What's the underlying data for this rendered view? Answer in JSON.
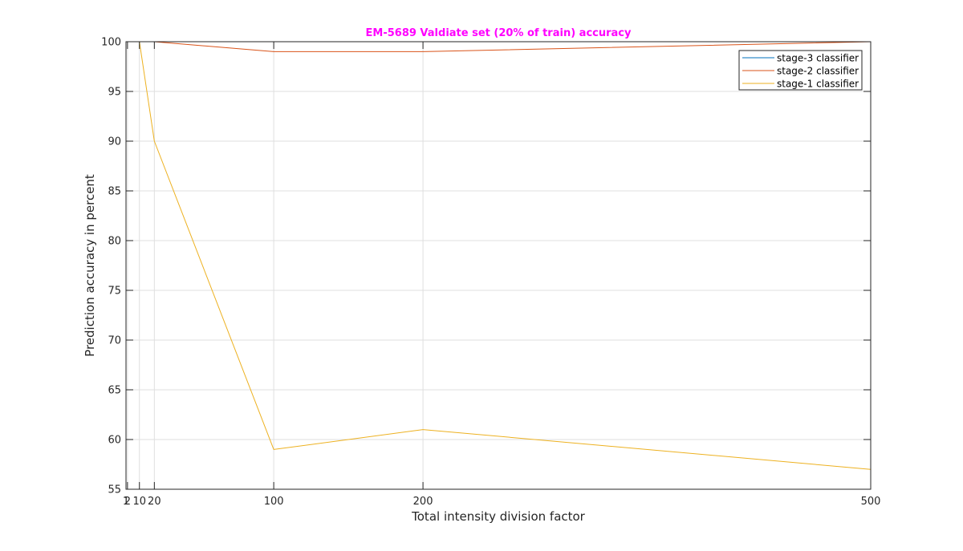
{
  "chart_data": {
    "type": "line",
    "title": "EM-5689 Valdiate set (20% of train) accuracy",
    "xlabel": "Total intensity division factor",
    "ylabel": "Prediction accuracy in percent",
    "xlim": [
      1,
      500
    ],
    "ylim": [
      55,
      100
    ],
    "xticks": [
      1,
      2,
      10,
      20,
      100,
      200,
      500
    ],
    "xtick_labels": [
      "1",
      "2",
      "10",
      "20",
      "100",
      "200",
      "500"
    ],
    "yticks": [
      55,
      60,
      65,
      70,
      75,
      80,
      85,
      90,
      95,
      100
    ],
    "grid": true,
    "legend_position": "top-right",
    "series": [
      {
        "name": "stage-3 classifier",
        "color": "#0072BD",
        "x": [
          1,
          2,
          10,
          20,
          100,
          200,
          500
        ],
        "y": [
          100,
          100,
          100,
          100,
          100,
          100,
          100
        ]
      },
      {
        "name": "stage-2 classifier",
        "color": "#D95319",
        "x": [
          1,
          2,
          10,
          20,
          100,
          200,
          500
        ],
        "y": [
          100,
          100,
          100,
          100,
          99,
          99,
          100
        ]
      },
      {
        "name": "stage-1 classifier",
        "color": "#EDB120",
        "x": [
          1,
          2,
          10,
          20,
          100,
          200,
          500
        ],
        "y": [
          100,
          100,
          100,
          90,
          59,
          61,
          57
        ]
      }
    ],
    "title_color": "#FF00FF"
  }
}
